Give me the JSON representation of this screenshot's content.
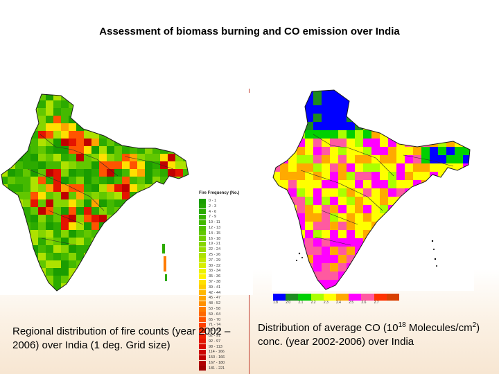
{
  "slide": {
    "title": "Assessment of biomass burning and CO emission over India"
  },
  "left_map": {
    "legend_title": "Fire Frequency (No.)",
    "legend": [
      {
        "label": "0 - 1",
        "color": "#1a9d00"
      },
      {
        "label": "2 - 3",
        "color": "#23a400"
      },
      {
        "label": "4 - 6",
        "color": "#2cab00"
      },
      {
        "label": "7 - 9",
        "color": "#36b200"
      },
      {
        "label": "10 - 11",
        "color": "#44b900"
      },
      {
        "label": "12 - 13",
        "color": "#52c000"
      },
      {
        "label": "14 - 15",
        "color": "#62c700"
      },
      {
        "label": "16 - 18",
        "color": "#73ce00"
      },
      {
        "label": "19 - 21",
        "color": "#86d500"
      },
      {
        "label": "22 - 24",
        "color": "#9adc00"
      },
      {
        "label": "25 - 26",
        "color": "#aee200"
      },
      {
        "label": "27 - 29",
        "color": "#c3e800"
      },
      {
        "label": "30 - 32",
        "color": "#d8ee00"
      },
      {
        "label": "33 - 34",
        "color": "#ecf200"
      },
      {
        "label": "35 - 36",
        "color": "#fff200"
      },
      {
        "label": "37 - 38",
        "color": "#ffe000"
      },
      {
        "label": "39 - 41",
        "color": "#ffcc00"
      },
      {
        "label": "42 - 44",
        "color": "#ffb800"
      },
      {
        "label": "45 - 47",
        "color": "#ffa400"
      },
      {
        "label": "48 - 52",
        "color": "#ff9000"
      },
      {
        "label": "53 - 58",
        "color": "#ff7c00"
      },
      {
        "label": "59 - 64",
        "color": "#ff6800"
      },
      {
        "label": "65 - 70",
        "color": "#ff5400"
      },
      {
        "label": "71 - 74",
        "color": "#ff4000"
      },
      {
        "label": "75 - 81",
        "color": "#f72e00"
      },
      {
        "label": "82 - 91",
        "color": "#ee2000"
      },
      {
        "label": "92 - 97",
        "color": "#e41400"
      },
      {
        "label": "98 - 113",
        "color": "#d80a00"
      },
      {
        "label": "114 - 166",
        "color": "#cc0400"
      },
      {
        "label": "150 - 166",
        "color": "#c00000"
      },
      {
        "label": "167 - 180",
        "color": "#b00000"
      },
      {
        "label": "181 - 221",
        "color": "#a00000"
      }
    ]
  },
  "right_map": {
    "colorbar": [
      {
        "value": "1.8",
        "color": "#0000ff"
      },
      {
        "value": "2.0",
        "color": "#1e8c1e"
      },
      {
        "value": "2.1",
        "color": "#00d000"
      },
      {
        "value": "2.2",
        "color": "#aaff00"
      },
      {
        "value": "2.3",
        "color": "#ffff00"
      },
      {
        "value": "2.4",
        "color": "#ffaa00"
      },
      {
        "value": "2.5",
        "color": "#ff00ff"
      },
      {
        "value": "2.6",
        "color": "#ff5aa0"
      },
      {
        "value": "2.7",
        "color": "#ff3300"
      },
      {
        "value": "",
        "color": "#d84000"
      }
    ]
  },
  "captions": {
    "left": "Regional distribution of fire counts (year 2002 – 2006) over India (1 deg. Grid size)",
    "right_part1": "Distribution of average CO (10",
    "right_sup1": "18",
    "right_part2": " Molecules/cm",
    "right_sup2": "2",
    "right_part3": ") conc. (year 2002-2006) over India"
  }
}
